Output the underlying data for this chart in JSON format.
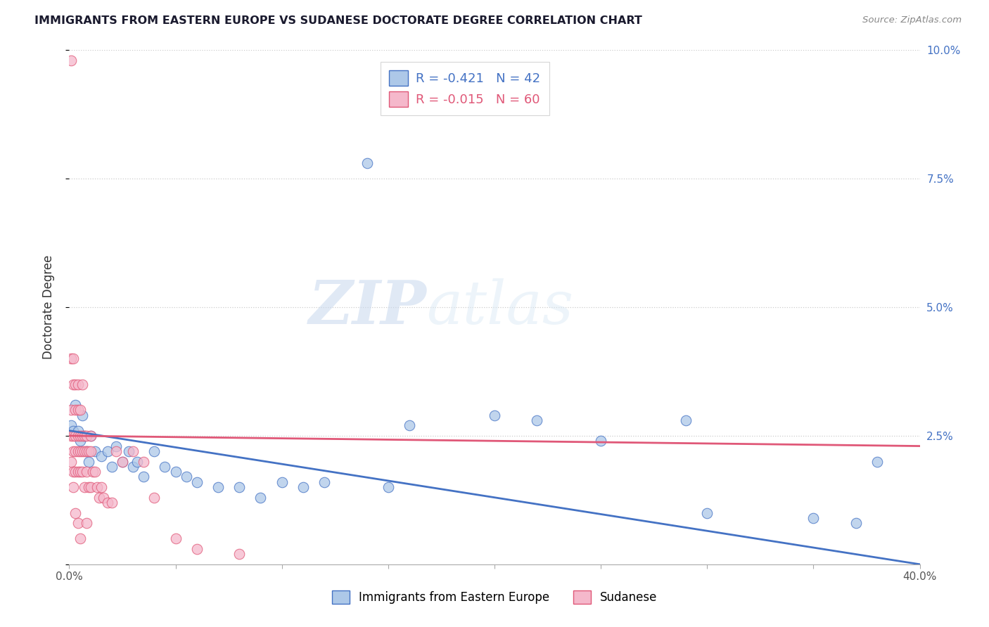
{
  "title": "IMMIGRANTS FROM EASTERN EUROPE VS SUDANESE DOCTORATE DEGREE CORRELATION CHART",
  "source": "Source: ZipAtlas.com",
  "ylabel": "Doctorate Degree",
  "xlim": [
    0.0,
    0.4
  ],
  "ylim": [
    0.0,
    0.1
  ],
  "blue_r": -0.421,
  "blue_n": 42,
  "pink_r": -0.015,
  "pink_n": 60,
  "blue_color": "#adc8e8",
  "pink_color": "#f5b8cb",
  "blue_line_color": "#4472c4",
  "pink_line_color": "#e05878",
  "watermark_zip": "ZIP",
  "watermark_atlas": "atlas",
  "blue_points_x": [
    0.001,
    0.002,
    0.003,
    0.004,
    0.005,
    0.006,
    0.007,
    0.008,
    0.009,
    0.01,
    0.012,
    0.015,
    0.018,
    0.02,
    0.022,
    0.025,
    0.028,
    0.03,
    0.032,
    0.035,
    0.04,
    0.045,
    0.05,
    0.055,
    0.06,
    0.07,
    0.08,
    0.09,
    0.1,
    0.11,
    0.12,
    0.14,
    0.15,
    0.16,
    0.2,
    0.22,
    0.25,
    0.29,
    0.3,
    0.35,
    0.37,
    0.38
  ],
  "blue_points_y": [
    0.027,
    0.026,
    0.031,
    0.026,
    0.024,
    0.029,
    0.025,
    0.022,
    0.02,
    0.025,
    0.022,
    0.021,
    0.022,
    0.019,
    0.023,
    0.02,
    0.022,
    0.019,
    0.02,
    0.017,
    0.022,
    0.019,
    0.018,
    0.017,
    0.016,
    0.015,
    0.015,
    0.013,
    0.016,
    0.015,
    0.016,
    0.078,
    0.015,
    0.027,
    0.029,
    0.028,
    0.024,
    0.028,
    0.01,
    0.009,
    0.008,
    0.02
  ],
  "pink_points_x": [
    0.001,
    0.001,
    0.001,
    0.001,
    0.001,
    0.002,
    0.002,
    0.002,
    0.002,
    0.002,
    0.002,
    0.003,
    0.003,
    0.003,
    0.003,
    0.003,
    0.003,
    0.004,
    0.004,
    0.004,
    0.004,
    0.004,
    0.004,
    0.005,
    0.005,
    0.005,
    0.005,
    0.005,
    0.006,
    0.006,
    0.006,
    0.006,
    0.007,
    0.007,
    0.007,
    0.008,
    0.008,
    0.008,
    0.008,
    0.009,
    0.009,
    0.01,
    0.01,
    0.01,
    0.011,
    0.012,
    0.013,
    0.014,
    0.015,
    0.016,
    0.018,
    0.02,
    0.022,
    0.025,
    0.03,
    0.035,
    0.04,
    0.05,
    0.06,
    0.08
  ],
  "pink_points_y": [
    0.098,
    0.04,
    0.03,
    0.025,
    0.02,
    0.04,
    0.035,
    0.025,
    0.022,
    0.018,
    0.015,
    0.035,
    0.03,
    0.025,
    0.022,
    0.018,
    0.01,
    0.035,
    0.03,
    0.025,
    0.022,
    0.018,
    0.008,
    0.03,
    0.025,
    0.022,
    0.018,
    0.005,
    0.035,
    0.025,
    0.022,
    0.018,
    0.025,
    0.022,
    0.015,
    0.025,
    0.022,
    0.018,
    0.008,
    0.022,
    0.015,
    0.025,
    0.022,
    0.015,
    0.018,
    0.018,
    0.015,
    0.013,
    0.015,
    0.013,
    0.012,
    0.012,
    0.022,
    0.02,
    0.022,
    0.02,
    0.013,
    0.005,
    0.003,
    0.002
  ],
  "blue_trend_x": [
    0.0,
    0.4
  ],
  "blue_trend_y": [
    0.026,
    0.0
  ],
  "pink_trend_x": [
    0.0,
    0.4
  ],
  "pink_trend_y": [
    0.025,
    0.023
  ],
  "ytick_positions": [
    0.0,
    0.025,
    0.05,
    0.075,
    0.1
  ],
  "ytick_labels": [
    "",
    "2.5%",
    "5.0%",
    "7.5%",
    "10.0%"
  ],
  "xtick_positions": [
    0.0,
    0.05,
    0.1,
    0.15,
    0.2,
    0.25,
    0.3,
    0.35,
    0.4
  ],
  "xtick_labels": [
    "0.0%",
    "",
    "",
    "",
    "",
    "",
    "",
    "",
    "40.0%"
  ],
  "legend_blue_label": "R = -0.421   N = 42",
  "legend_pink_label": "R = -0.015   N = 60",
  "bottom_legend_blue": "Immigrants from Eastern Europe",
  "bottom_legend_pink": "Sudanese"
}
